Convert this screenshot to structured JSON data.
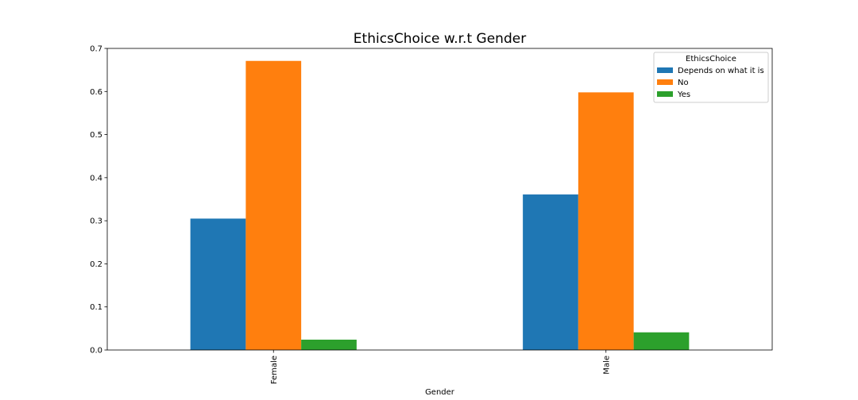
{
  "chart_data": {
    "type": "bar",
    "title": "EthicsChoice w.r.t Gender",
    "xlabel": "Gender",
    "ylabel": "",
    "categories": [
      "Female",
      "Male"
    ],
    "series": [
      {
        "name": "Depends on what it is",
        "color": "#1f77b4",
        "values": [
          0.305,
          0.361
        ]
      },
      {
        "name": "No",
        "color": "#ff7f0e",
        "values": [
          0.671,
          0.598
        ]
      },
      {
        "name": "Yes",
        "color": "#2ca02c",
        "values": [
          0.024,
          0.041
        ]
      }
    ],
    "ylim": [
      0,
      0.7
    ],
    "yticks": [
      0.0,
      0.1,
      0.2,
      0.3,
      0.4,
      0.5,
      0.6,
      0.7
    ],
    "ytick_labels": [
      "0.0",
      "0.1",
      "0.2",
      "0.3",
      "0.4",
      "0.5",
      "0.6",
      "0.7"
    ],
    "legend": {
      "title": "EthicsChoice",
      "placement": "top-right"
    },
    "grid": false
  }
}
